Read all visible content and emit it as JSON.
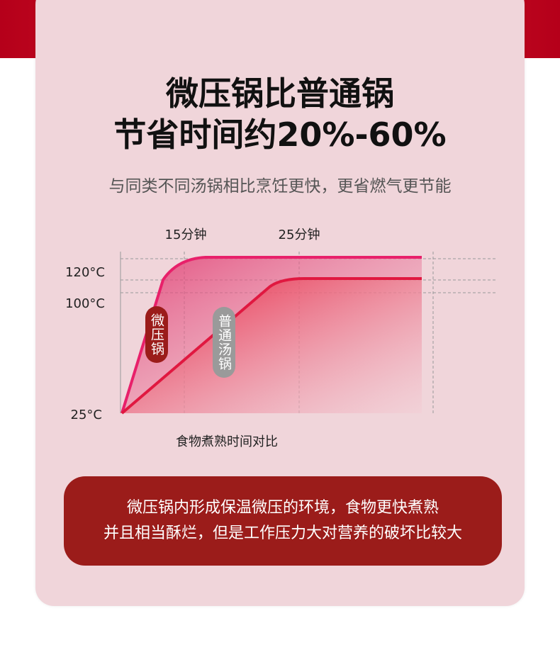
{
  "header": {
    "title_lines": [
      "微压锅比普通锅",
      "节省时间约20%-60%"
    ],
    "subtitle": "与同类不同汤锅相比烹饪更快，更省燃气更节能"
  },
  "diagram": {
    "x_labels": [
      "15分钟",
      "25分钟"
    ],
    "y_labels": [
      "120°C",
      "100°C",
      "25°C"
    ],
    "curve_labels": [
      "微压锅",
      "普通汤锅"
    ],
    "caption": "食物煮熟时间对比"
  },
  "note": {
    "lines": [
      "微压锅内形成保温微压的环境，食物更快煮熟",
      "并且相当酥烂，但是工作压力大对营养的破坏比较大"
    ]
  }
}
